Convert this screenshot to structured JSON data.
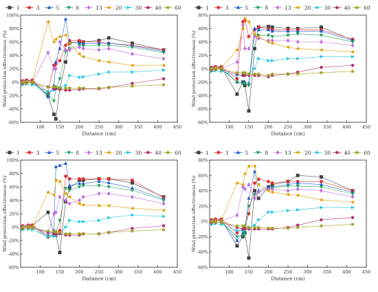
{
  "legend": [
    "1",
    "3",
    "5",
    "8",
    "13",
    "20",
    "30",
    "40",
    "60"
  ],
  "colors": [
    "#404040",
    "#e03030",
    "#1f5fd0",
    "#20a060",
    "#c070e0",
    "#e0a000",
    "#20c8e0",
    "#b03070",
    "#a0a020"
  ],
  "markers": [
    "square",
    "circle",
    "triangle",
    "triangle-down",
    "diamond",
    "triangle-left",
    "triangle-right",
    "hexagon",
    "star"
  ],
  "chart_data": [
    {
      "type": "scatter",
      "xlabel": "Distance (cm)",
      "ylabel": "Wind protection effectiveness (%)",
      "xlim": [
        50,
        450
      ],
      "ylim": [
        -60,
        100
      ],
      "xticks": [
        100,
        150,
        200,
        250,
        300,
        350,
        400,
        450
      ],
      "yticks": [
        -60,
        -40,
        -20,
        0,
        20,
        40,
        60,
        80,
        100
      ],
      "ytick_labels": [
        "-60%",
        "-40%",
        "-20%",
        "0%",
        "20%",
        "40%",
        "60%",
        "80%",
        "100%"
      ],
      "x": [
        55,
        65,
        80,
        120,
        135,
        140,
        150,
        165,
        175,
        200,
        210,
        250,
        275,
        335,
        415
      ],
      "series": [
        {
          "name": "1",
          "values": [
            0,
            2,
            2,
            -20,
            -48,
            -55,
            -10,
            30,
            58,
            61,
            60,
            62,
            66,
            58,
            48
          ]
        },
        {
          "name": "3",
          "values": [
            2,
            3,
            3,
            -15,
            25,
            27,
            32,
            55,
            62,
            62,
            60,
            60,
            58,
            55,
            48
          ]
        },
        {
          "name": "5",
          "values": [
            1,
            2,
            1,
            -22,
            -5,
            30,
            50,
            94,
            60,
            58,
            57,
            58,
            58,
            54,
            46
          ]
        },
        {
          "name": "8",
          "values": [
            -2,
            -1,
            -1,
            -18,
            -28,
            -10,
            5,
            45,
            50,
            55,
            54,
            55,
            55,
            52,
            44
          ]
        },
        {
          "name": "13",
          "values": [
            0,
            1,
            0,
            44,
            20,
            20,
            60,
            48,
            48,
            52,
            50,
            48,
            50,
            42,
            35
          ]
        },
        {
          "name": "20",
          "values": [
            0,
            1,
            1,
            90,
            60,
            64,
            68,
            70,
            58,
            42,
            38,
            32,
            30,
            25,
            25
          ]
        },
        {
          "name": "30",
          "values": [
            -4,
            -3,
            -4,
            -14,
            -12,
            -10,
            -8,
            -5,
            10,
            7,
            8,
            12,
            15,
            15,
            18
          ]
        },
        {
          "name": "40",
          "values": [
            -2,
            -1,
            -1,
            -7,
            -10,
            -10,
            -11,
            -12,
            -12,
            -11,
            -10,
            -10,
            -8,
            -2,
            5
          ]
        },
        {
          "name": "60",
          "values": [
            -1,
            -1,
            -1,
            -7,
            -7,
            -7,
            -9,
            -9,
            -9,
            -9,
            -9,
            -9,
            -8,
            -6,
            -4
          ]
        }
      ]
    },
    {
      "type": "scatter",
      "xlabel": "Distance (cm)",
      "ylabel": "Wind protection effectiveness (%)",
      "xlim": [
        50,
        450
      ],
      "ylim": [
        -80,
        80
      ],
      "xticks": [
        100,
        150,
        200,
        250,
        300,
        350,
        400,
        450
      ],
      "yticks": [
        -80,
        -60,
        -40,
        -20,
        0,
        20,
        40,
        60,
        80
      ],
      "ytick_labels": [
        "-80%",
        "-60%",
        "-40%",
        "-20%",
        "0%",
        "20%",
        "40%",
        "60%",
        "80%"
      ],
      "x": [
        55,
        65,
        80,
        120,
        135,
        140,
        150,
        165,
        175,
        200,
        210,
        250,
        275,
        335,
        415
      ],
      "series": [
        {
          "name": "1",
          "values": [
            0,
            2,
            2,
            -38,
            -20,
            -25,
            -63,
            30,
            62,
            63,
            62,
            60,
            60,
            62,
            43
          ]
        },
        {
          "name": "3",
          "values": [
            2,
            3,
            3,
            -15,
            70,
            72,
            48,
            58,
            62,
            60,
            58,
            58,
            58,
            58,
            44
          ]
        },
        {
          "name": "5",
          "values": [
            1,
            2,
            1,
            -20,
            -20,
            -20,
            -22,
            60,
            58,
            58,
            56,
            56,
            56,
            56,
            42
          ]
        },
        {
          "name": "8",
          "values": [
            -2,
            -1,
            -1,
            -20,
            -22,
            -22,
            -25,
            48,
            50,
            50,
            48,
            50,
            52,
            50,
            40
          ]
        },
        {
          "name": "13",
          "values": [
            0,
            1,
            0,
            10,
            65,
            30,
            30,
            48,
            45,
            42,
            42,
            42,
            40,
            40,
            35
          ]
        },
        {
          "name": "20",
          "values": [
            0,
            1,
            1,
            28,
            60,
            75,
            70,
            52,
            48,
            40,
            38,
            32,
            30,
            28,
            25
          ]
        },
        {
          "name": "30",
          "values": [
            -4,
            -3,
            -4,
            -10,
            -10,
            -10,
            -8,
            0,
            15,
            12,
            12,
            15,
            15,
            18,
            18
          ]
        },
        {
          "name": "40",
          "values": [
            -2,
            -1,
            -1,
            -8,
            -10,
            -10,
            -10,
            -10,
            -10,
            -12,
            -10,
            -8,
            -5,
            2,
            5
          ]
        },
        {
          "name": "60",
          "values": [
            -1,
            -1,
            -1,
            -6,
            -6,
            -6,
            -8,
            -8,
            -8,
            -10,
            -8,
            -8,
            -8,
            -6,
            -4
          ]
        }
      ]
    },
    {
      "type": "scatter",
      "xlabel": "Distance (cm)",
      "ylabel": "Wind protection effectiveness (%)",
      "xlim": [
        50,
        450
      ],
      "ylim": [
        -60,
        100
      ],
      "xticks": [
        100,
        150,
        200,
        250,
        300,
        350,
        400,
        450
      ],
      "yticks": [
        -60,
        -40,
        -20,
        0,
        20,
        40,
        60,
        80,
        100
      ],
      "ytick_labels": [
        "-60%",
        "-40%",
        "-20%",
        "0%",
        "20%",
        "40%",
        "60%",
        "80%",
        "100%"
      ],
      "x": [
        55,
        70,
        80,
        120,
        135,
        140,
        150,
        165,
        175,
        200,
        210,
        250,
        275,
        335,
        415
      ],
      "series": [
        {
          "name": "1",
          "values": [
            0,
            2,
            2,
            22,
            -10,
            -12,
            -38,
            38,
            58,
            70,
            70,
            72,
            72,
            66,
            45
          ]
        },
        {
          "name": "3",
          "values": [
            2,
            3,
            3,
            -15,
            -10,
            -12,
            -5,
            76,
            72,
            72,
            72,
            72,
            72,
            70,
            44
          ]
        },
        {
          "name": "5",
          "values": [
            1,
            2,
            1,
            -12,
            -5,
            90,
            92,
            95,
            62,
            65,
            65,
            68,
            66,
            58,
            42
          ]
        },
        {
          "name": "8",
          "values": [
            -2,
            -1,
            -1,
            -15,
            -12,
            -8,
            10,
            58,
            55,
            60,
            62,
            62,
            60,
            55,
            40
          ]
        },
        {
          "name": "13",
          "values": [
            0,
            1,
            0,
            -8,
            20,
            22,
            45,
            40,
            35,
            40,
            45,
            50,
            50,
            45,
            35
          ]
        },
        {
          "name": "20",
          "values": [
            0,
            1,
            1,
            52,
            48,
            70,
            68,
            50,
            45,
            35,
            33,
            32,
            32,
            28,
            25
          ]
        },
        {
          "name": "30",
          "values": [
            -4,
            -3,
            -4,
            -14,
            -14,
            -12,
            -10,
            0,
            10,
            8,
            8,
            10,
            14,
            18,
            16
          ]
        },
        {
          "name": "40",
          "values": [
            -2,
            -1,
            -1,
            -8,
            -10,
            -10,
            -10,
            -12,
            -12,
            -12,
            -10,
            -10,
            -8,
            -2,
            2
          ]
        },
        {
          "name": "60",
          "values": [
            -1,
            -1,
            -1,
            -6,
            -7,
            -7,
            -8,
            -10,
            -10,
            -10,
            -10,
            -10,
            -8,
            -6,
            -4
          ]
        }
      ]
    },
    {
      "type": "scatter",
      "xlabel": "Distance (cm)",
      "ylabel": "Wind protection effectiveness (%)",
      "xlim": [
        50,
        450
      ],
      "ylim": [
        -60,
        80
      ],
      "xticks": [
        100,
        150,
        200,
        250,
        300,
        350,
        400,
        450
      ],
      "yticks": [
        -60,
        -40,
        -20,
        0,
        20,
        40,
        60,
        80
      ],
      "ytick_labels": [
        "-60%",
        "-40%",
        "-20%",
        "0%",
        "20%",
        "40%",
        "60%",
        "80%"
      ],
      "x": [
        55,
        65,
        80,
        120,
        135,
        140,
        150,
        165,
        175,
        200,
        210,
        250,
        275,
        335,
        415
      ],
      "series": [
        {
          "name": "1",
          "values": [
            0,
            2,
            2,
            -32,
            -20,
            -15,
            -48,
            40,
            30,
            45,
            48,
            52,
            60,
            58,
            40
          ]
        },
        {
          "name": "3",
          "values": [
            2,
            3,
            3,
            -15,
            -10,
            -8,
            10,
            50,
            55,
            52,
            50,
            52,
            52,
            52,
            40
          ]
        },
        {
          "name": "5",
          "values": [
            1,
            2,
            1,
            -25,
            -15,
            -10,
            30,
            65,
            40,
            45,
            45,
            48,
            50,
            48,
            38
          ]
        },
        {
          "name": "8",
          "values": [
            -2,
            -1,
            -1,
            -20,
            -18,
            -15,
            20,
            35,
            38,
            42,
            44,
            46,
            46,
            45,
            36
          ]
        },
        {
          "name": "13",
          "values": [
            0,
            1,
            0,
            8,
            45,
            42,
            48,
            30,
            38,
            42,
            42,
            40,
            42,
            40,
            32
          ]
        },
        {
          "name": "20",
          "values": [
            0,
            1,
            1,
            50,
            48,
            62,
            72,
            72,
            48,
            40,
            38,
            35,
            34,
            28,
            25
          ]
        },
        {
          "name": "30",
          "values": [
            -4,
            -3,
            -4,
            -12,
            -12,
            -10,
            -8,
            -5,
            2,
            12,
            12,
            14,
            15,
            18,
            18
          ]
        },
        {
          "name": "40",
          "values": [
            -2,
            -1,
            -1,
            -8,
            -10,
            -10,
            -10,
            -10,
            -10,
            -10,
            -10,
            -8,
            -5,
            2,
            5
          ]
        },
        {
          "name": "60",
          "values": [
            -1,
            -1,
            -1,
            -6,
            -6,
            -6,
            -8,
            -8,
            -8,
            -9,
            -9,
            -9,
            -8,
            -6,
            -4
          ]
        }
      ]
    }
  ]
}
